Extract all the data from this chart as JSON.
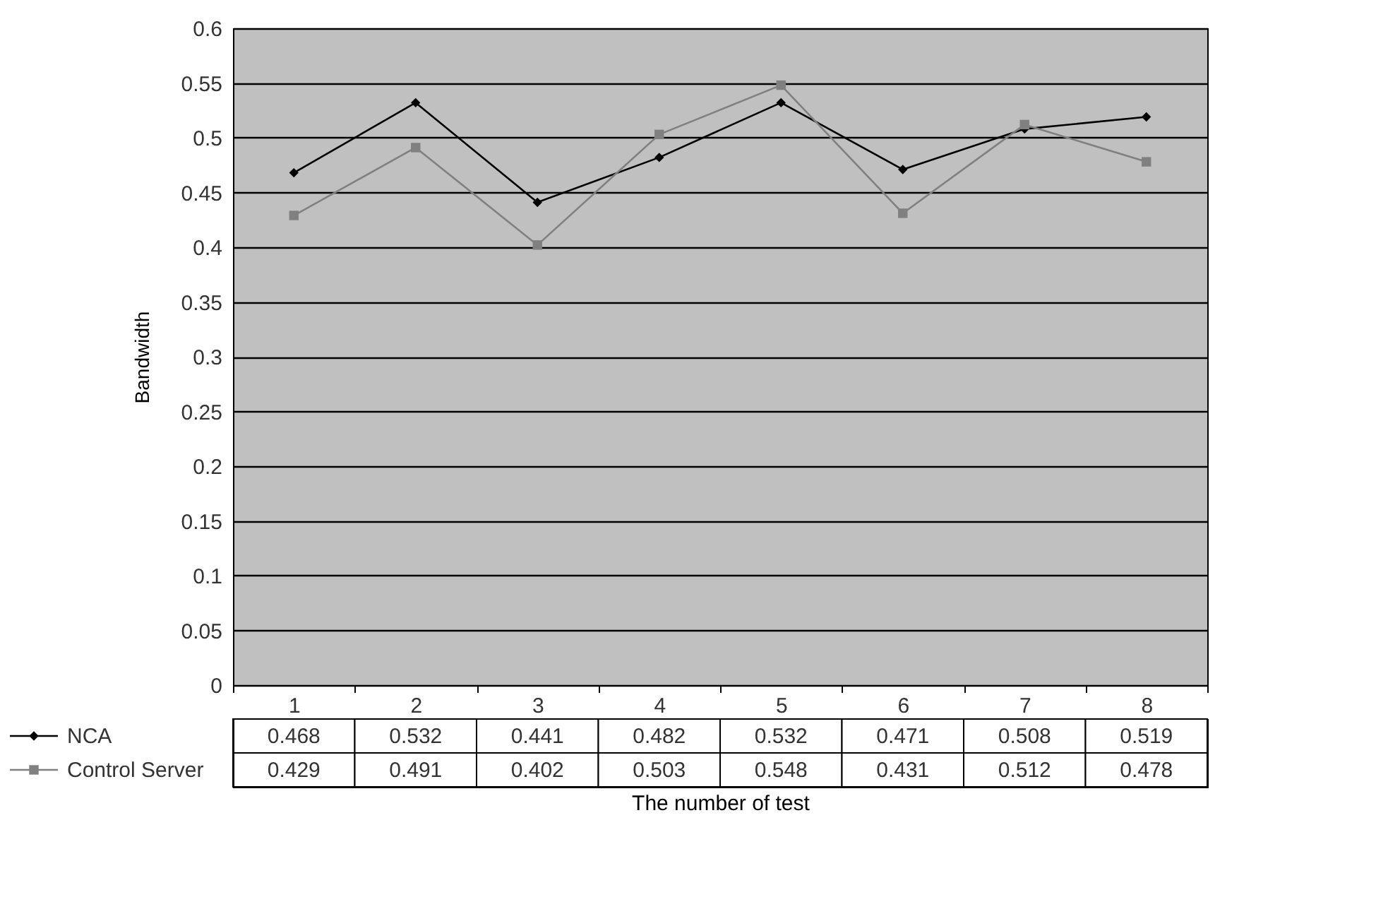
{
  "chart_data": {
    "type": "line",
    "xlabel": "The number of test",
    "ylabel": "Bandwidth",
    "categories": [
      "1",
      "2",
      "3",
      "4",
      "5",
      "6",
      "7",
      "8"
    ],
    "series": [
      {
        "name": "NCA",
        "color": "#000000",
        "marker": "diamond",
        "values": [
          0.468,
          0.532,
          0.441,
          0.482,
          0.532,
          0.471,
          0.508,
          0.519
        ]
      },
      {
        "name": "Control Server",
        "color": "#808080",
        "marker": "square",
        "values": [
          0.429,
          0.491,
          0.402,
          0.503,
          0.548,
          0.431,
          0.512,
          0.478
        ]
      }
    ],
    "ylim": [
      0,
      0.6
    ],
    "yticks": [
      0,
      0.05,
      0.1,
      0.15,
      0.2,
      0.25,
      0.3,
      0.35,
      0.4,
      0.45,
      0.5,
      0.55,
      0.6
    ],
    "grid": "y",
    "legend": "bottom left",
    "data_labels": true,
    "line_style": "solid"
  }
}
